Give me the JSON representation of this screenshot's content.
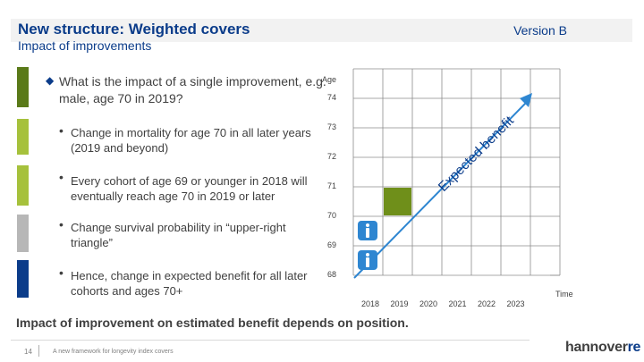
{
  "header": {
    "title": "New structure: Weighted covers",
    "version": "Version B",
    "subtitle": "Impact of improvements"
  },
  "question": "What is the impact of a single improvement, e.g. male, age 70 in 2019?",
  "bullets": [
    {
      "text": "Change in mortality for age 70 in all later years (2019 and beyond)",
      "color": "#a6c13c"
    },
    {
      "text": "Every cohort of age 69 or younger in 2018 will eventually reach age 70 in 2019 or later",
      "color": "#a6c13c"
    },
    {
      "text": "Change survival probability in “upper-right triangle”",
      "color": "#b7b7b7"
    },
    {
      "text": "Hence, change in expected benefit for all later cohorts and ages 70+",
      "color": "#0b3c8a"
    }
  ],
  "question_bar_color": "#5a7a19",
  "diagram": {
    "age_axis_title": "Age",
    "time_axis_title": "Time",
    "ages": [
      "74",
      "73",
      "72",
      "71",
      "70",
      "69",
      "68"
    ],
    "years": [
      "2018",
      "2019",
      "2020",
      "2021",
      "2022",
      "2023"
    ],
    "highlight_cell": {
      "age": "70",
      "year": "2019",
      "color": "#6f8f1a"
    },
    "diagonal_label": "Expected benefit",
    "diagonal_color": "#2e86d1",
    "person_icon_ages": [
      "69",
      "68"
    ]
  },
  "conclusion": "Impact of improvement on estimated benefit depends on position.",
  "footer": {
    "page_number": "14",
    "text": "A new framework for longevity index covers",
    "logo_main": "hannover",
    "logo_accent": "re"
  }
}
